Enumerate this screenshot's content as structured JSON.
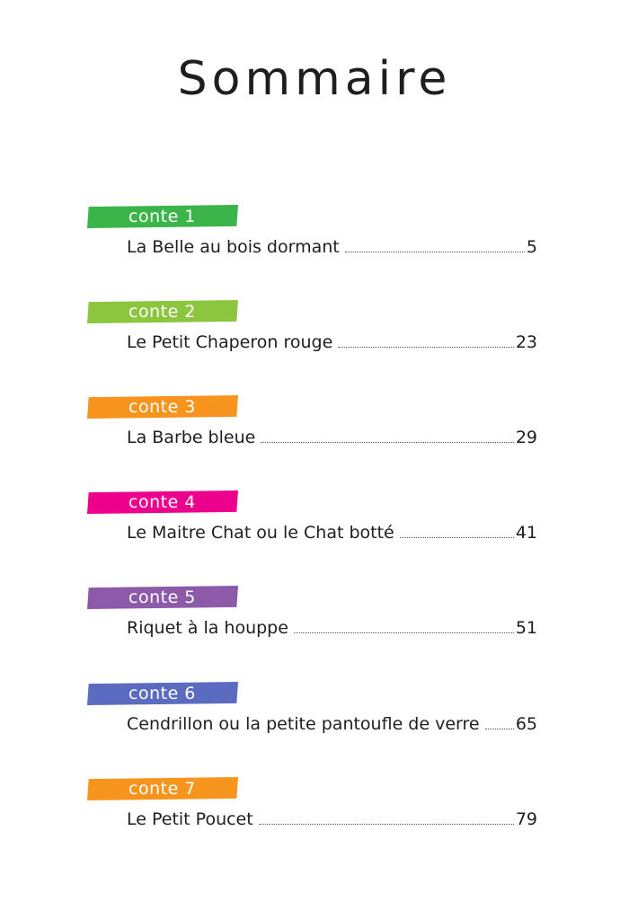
{
  "title": "Sommaire",
  "entries": [
    {
      "tag": "conte 1",
      "title": "La Belle au bois dormant",
      "page": "5",
      "color": "#3bb54a"
    },
    {
      "tag": "conte 2",
      "title": "Le Petit Chaperon rouge",
      "page": "23",
      "color": "#8cc63f"
    },
    {
      "tag": "conte 3",
      "title": "La Barbe bleue",
      "page": "29",
      "color": "#f7941d"
    },
    {
      "tag": "conte 4",
      "title": "Le Maitre Chat ou le Chat botté",
      "page": "41",
      "color": "#ec008c"
    },
    {
      "tag": "conte 5",
      "title": "Riquet à la houppe",
      "page": "51",
      "color": "#8c5aa8"
    },
    {
      "tag": "conte 6",
      "title": "Cendrillon ou la petite pantoufle de verre",
      "page": "65",
      "color": "#5b6bbf"
    },
    {
      "tag": "conte 7",
      "title": "Le Petit Poucet",
      "page": "79",
      "color": "#f7941d"
    }
  ]
}
